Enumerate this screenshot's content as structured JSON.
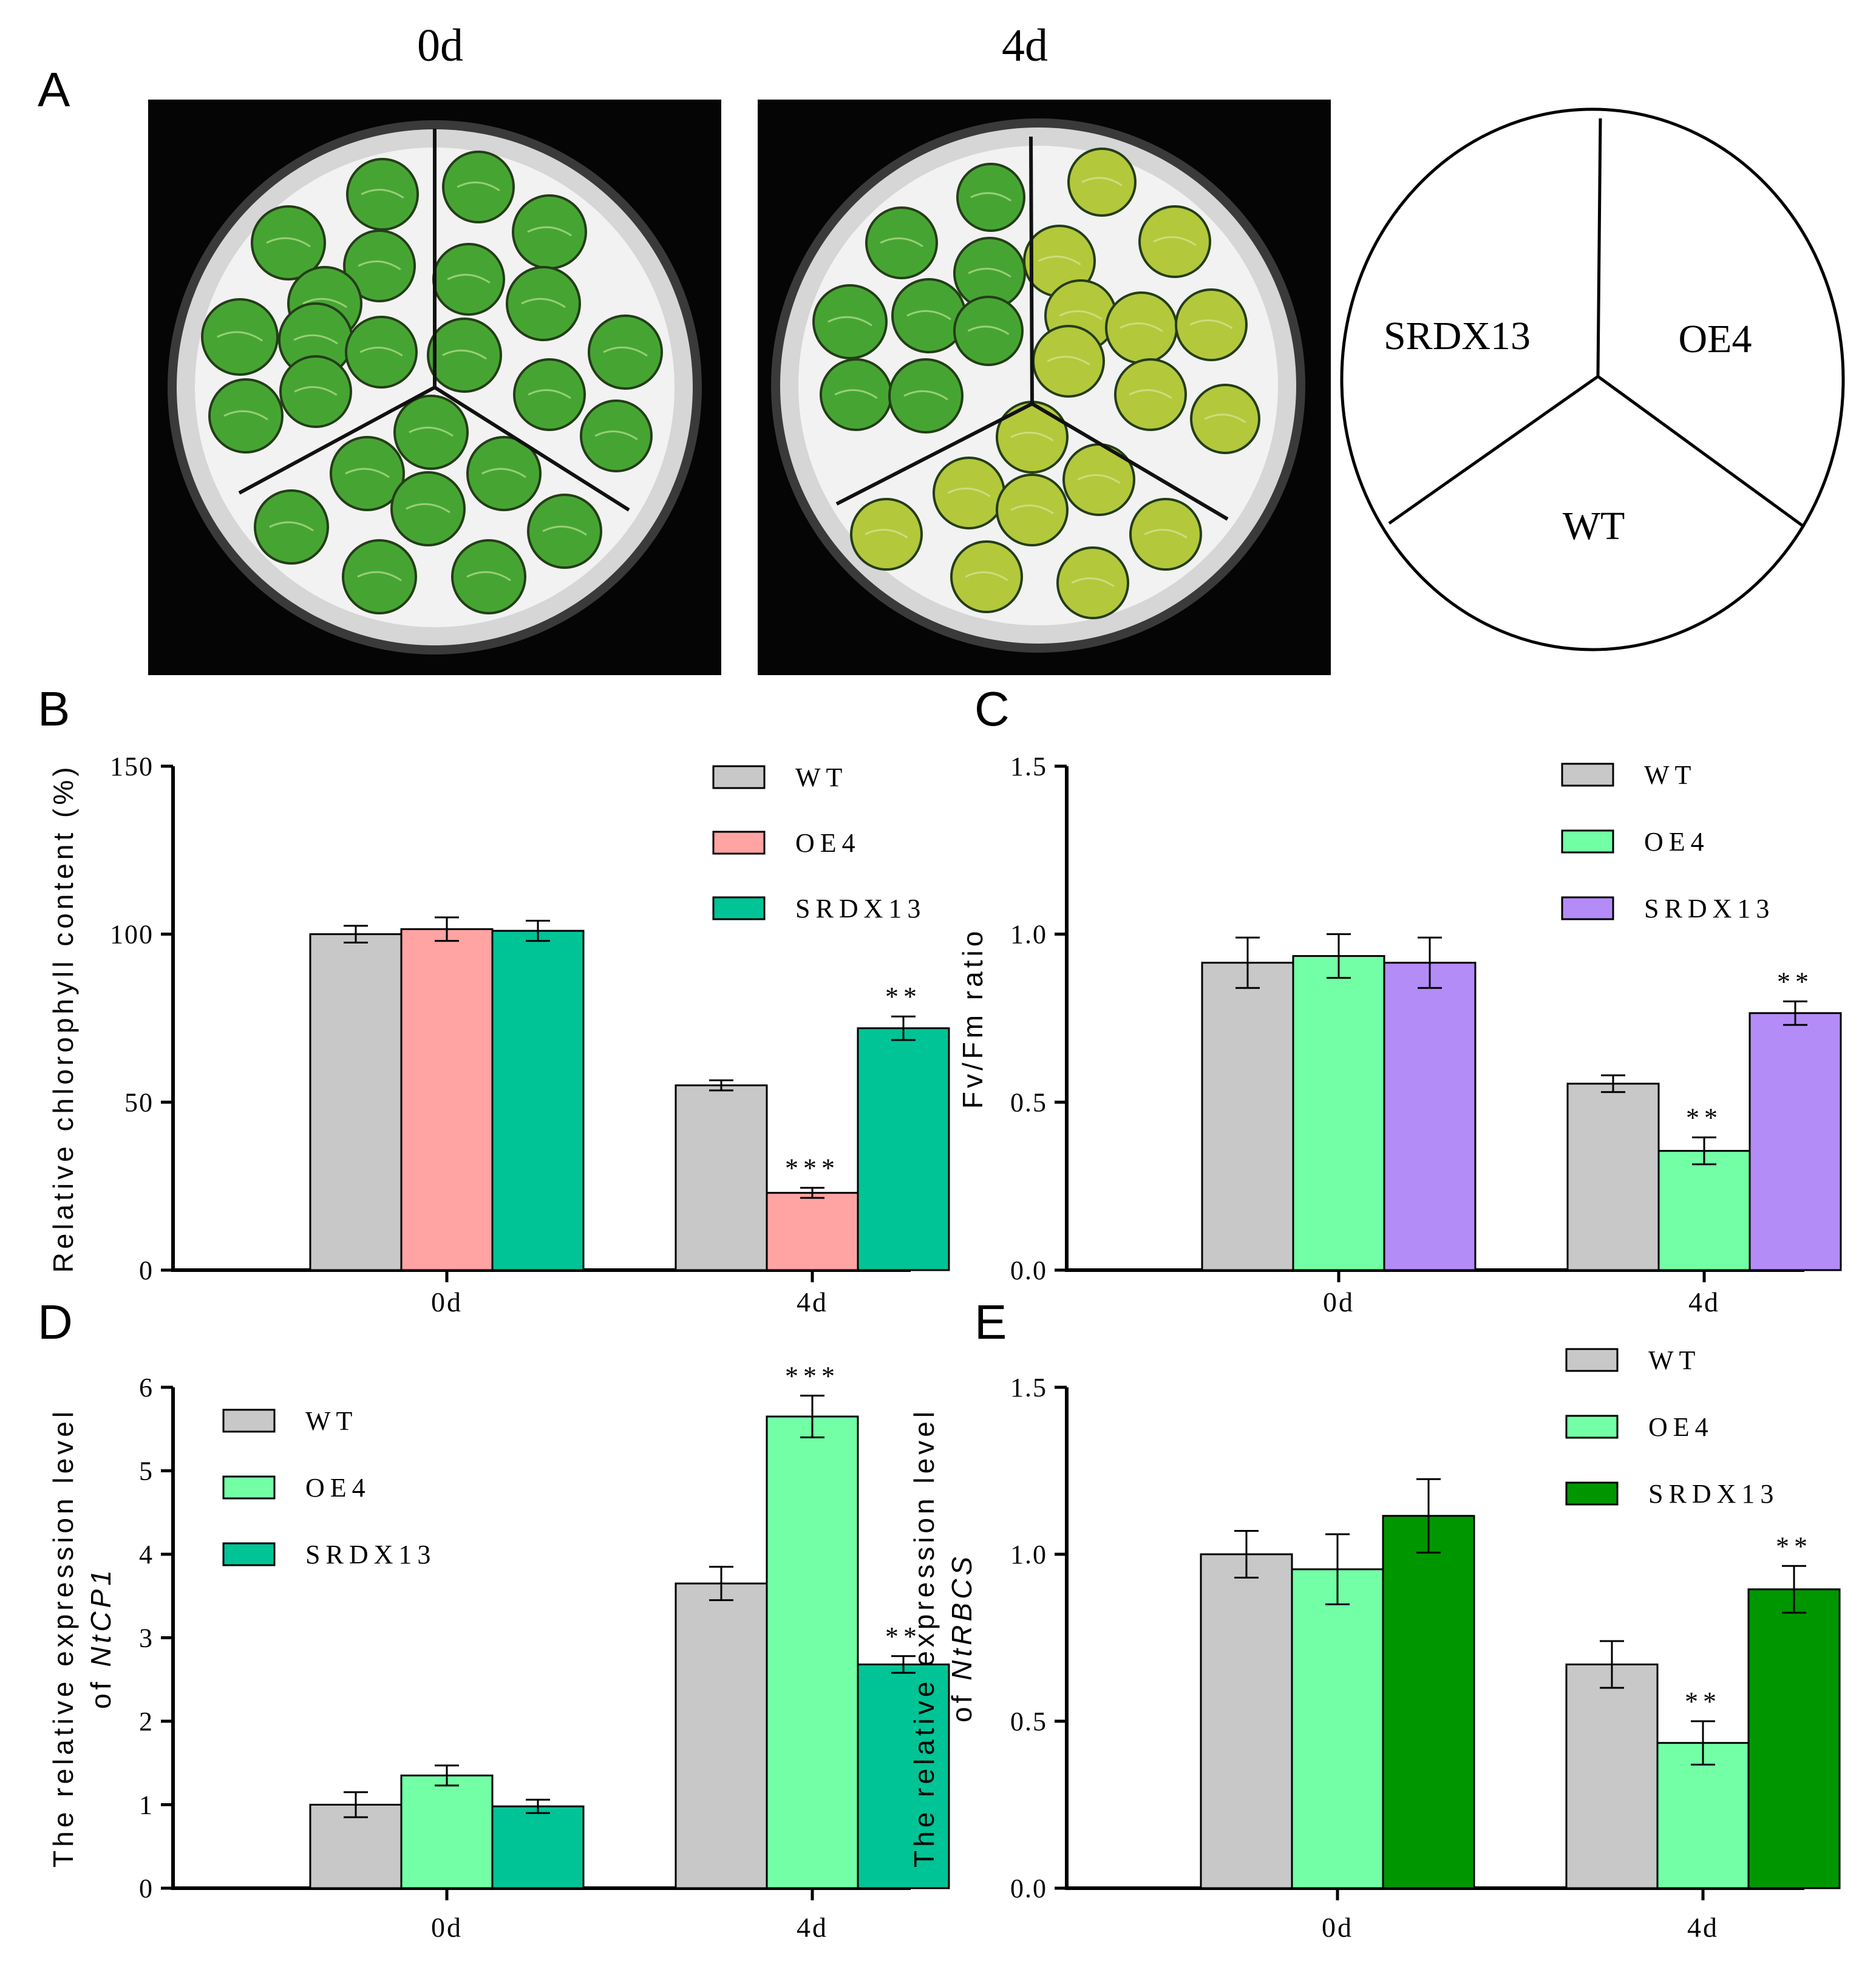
{
  "panel_a": {
    "letter": "A",
    "photo_0d_label": "0d",
    "photo_4d_label": "4d",
    "diagram_sectors": [
      "SRDX13",
      "OE4",
      "WT"
    ]
  },
  "colors": {
    "wt": "#c8c8c8",
    "oe4_pink": "#ffa3a3",
    "oe4_green": "#73ffa6",
    "srdx13_teal": "#00c496",
    "srdx13_purple": "#b48cf8",
    "srdx13_dark": "#009600",
    "leaf_fresh": "#46a532",
    "leaf_yellow": "#b4c83c"
  },
  "chart_data": [
    {
      "panel": "B",
      "type": "bar",
      "ylabel": "Relative chlorophyll content (%)",
      "ylim": [
        0,
        150
      ],
      "yticks": [
        "0",
        "50",
        "100",
        "150"
      ],
      "categories": [
        "0d",
        "4d"
      ],
      "legend": "top-right",
      "series": [
        {
          "name": "WT",
          "color": "#c8c8c8",
          "values": [
            100,
            55
          ],
          "errors": [
            2.5,
            1.5
          ],
          "sig": [
            "",
            ""
          ]
        },
        {
          "name": "OE4",
          "color": "#ffa3a3",
          "values": [
            101.5,
            23
          ],
          "errors": [
            3.5,
            1.5
          ],
          "sig": [
            "",
            "***"
          ]
        },
        {
          "name": "SRDX13",
          "color": "#00c496",
          "values": [
            101,
            72
          ],
          "errors": [
            3,
            3.5
          ],
          "sig": [
            "",
            "**"
          ]
        }
      ]
    },
    {
      "panel": "C",
      "type": "bar",
      "ylabel": "Fv/Fm ratio",
      "ylim": [
        0,
        1.5
      ],
      "yticks": [
        "0.0",
        "0.5",
        "1.0",
        "1.5"
      ],
      "categories": [
        "0d",
        "4d"
      ],
      "legend": "top-right",
      "series": [
        {
          "name": "WT",
          "color": "#c8c8c8",
          "values": [
            0.915,
            0.555
          ],
          "errors": [
            0.075,
            0.025
          ],
          "sig": [
            "",
            ""
          ]
        },
        {
          "name": "OE4",
          "color": "#73ffa6",
          "values": [
            0.935,
            0.355
          ],
          "errors": [
            0.065,
            0.04
          ],
          "sig": [
            "",
            "**"
          ]
        },
        {
          "name": "SRDX13",
          "color": "#b48cf8",
          "values": [
            0.915,
            0.765
          ],
          "errors": [
            0.075,
            0.035
          ],
          "sig": [
            "",
            "**"
          ]
        }
      ]
    },
    {
      "panel": "D",
      "type": "bar",
      "ylabel_line1": "The relative expression level",
      "ylabel_prefix": "of",
      "ylabel_gene": "NtCP1",
      "ylim": [
        0,
        6
      ],
      "yticks": [
        "0",
        "1",
        "2",
        "3",
        "4",
        "5",
        "6"
      ],
      "categories": [
        "0d",
        "4d"
      ],
      "legend": "top-left",
      "series": [
        {
          "name": "WT",
          "color": "#c8c8c8",
          "values": [
            1.0,
            3.65
          ],
          "errors": [
            0.15,
            0.2
          ],
          "sig": [
            "",
            ""
          ]
        },
        {
          "name": "OE4",
          "color": "#73ffa6",
          "values": [
            1.35,
            5.65
          ],
          "errors": [
            0.12,
            0.25
          ],
          "sig": [
            "",
            "***"
          ]
        },
        {
          "name": "SRDX13",
          "color": "#00c496",
          "values": [
            0.98,
            2.68
          ],
          "errors": [
            0.08,
            0.1
          ],
          "sig": [
            "",
            "**"
          ]
        }
      ]
    },
    {
      "panel": "E",
      "type": "bar",
      "ylabel_line1": "The relative expression level",
      "ylabel_prefix": "of",
      "ylabel_gene": "NtRBCS",
      "ylim": [
        0,
        1.5
      ],
      "yticks": [
        "0.0",
        "0.5",
        "1.0",
        "1.5"
      ],
      "categories": [
        "0d",
        "4d"
      ],
      "legend": "top-right",
      "series": [
        {
          "name": "WT",
          "color": "#c8c8c8",
          "values": [
            1.0,
            0.67
          ],
          "errors": [
            0.07,
            0.07
          ],
          "sig": [
            "",
            ""
          ]
        },
        {
          "name": "OE4",
          "color": "#73ffa6",
          "values": [
            0.955,
            0.435
          ],
          "errors": [
            0.105,
            0.065
          ],
          "sig": [
            "",
            "**"
          ]
        },
        {
          "name": "SRDX13",
          "color": "#009600",
          "values": [
            1.115,
            0.895
          ],
          "errors": [
            0.11,
            0.07
          ],
          "sig": [
            "",
            "**"
          ]
        }
      ]
    }
  ]
}
